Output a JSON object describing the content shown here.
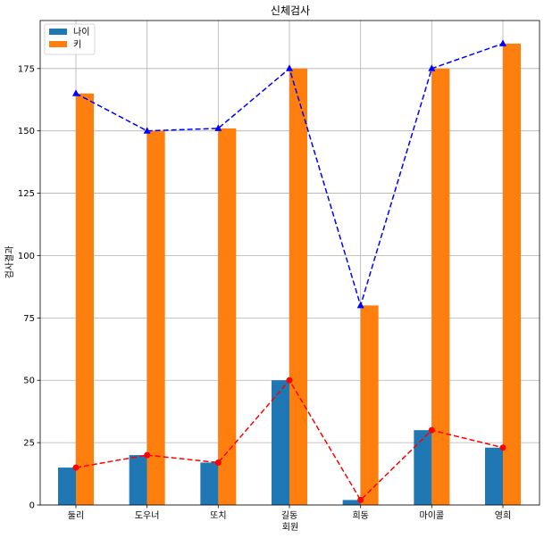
{
  "chart_data": {
    "type": "bar",
    "title": "신체검사",
    "xlabel": "회원",
    "ylabel": "검사결과",
    "categories": [
      "둘리",
      "도우너",
      "또치",
      "길동",
      "희동",
      "마이콜",
      "영희"
    ],
    "series": [
      {
        "name": "나이",
        "values": [
          15,
          20,
          17,
          50,
          2,
          30,
          23
        ],
        "color": "#1f77b4"
      },
      {
        "name": "키",
        "values": [
          165,
          150,
          151,
          175,
          80,
          175,
          185
        ],
        "color": "#ff7f0e"
      }
    ],
    "lines": [
      {
        "values": [
          15,
          20,
          17,
          50,
          2,
          30,
          23
        ],
        "color": "#ff0000",
        "style": "dashed",
        "marker": "circle"
      },
      {
        "values": [
          165,
          150,
          151,
          175,
          80,
          175,
          185
        ],
        "color": "#0000ff",
        "style": "dashed",
        "marker": "triangle"
      }
    ],
    "ylim": [
      0,
      194.25
    ],
    "yticks": [
      0,
      25,
      50,
      75,
      100,
      125,
      150,
      175
    ],
    "grid": true,
    "legend_position": "top-left"
  }
}
